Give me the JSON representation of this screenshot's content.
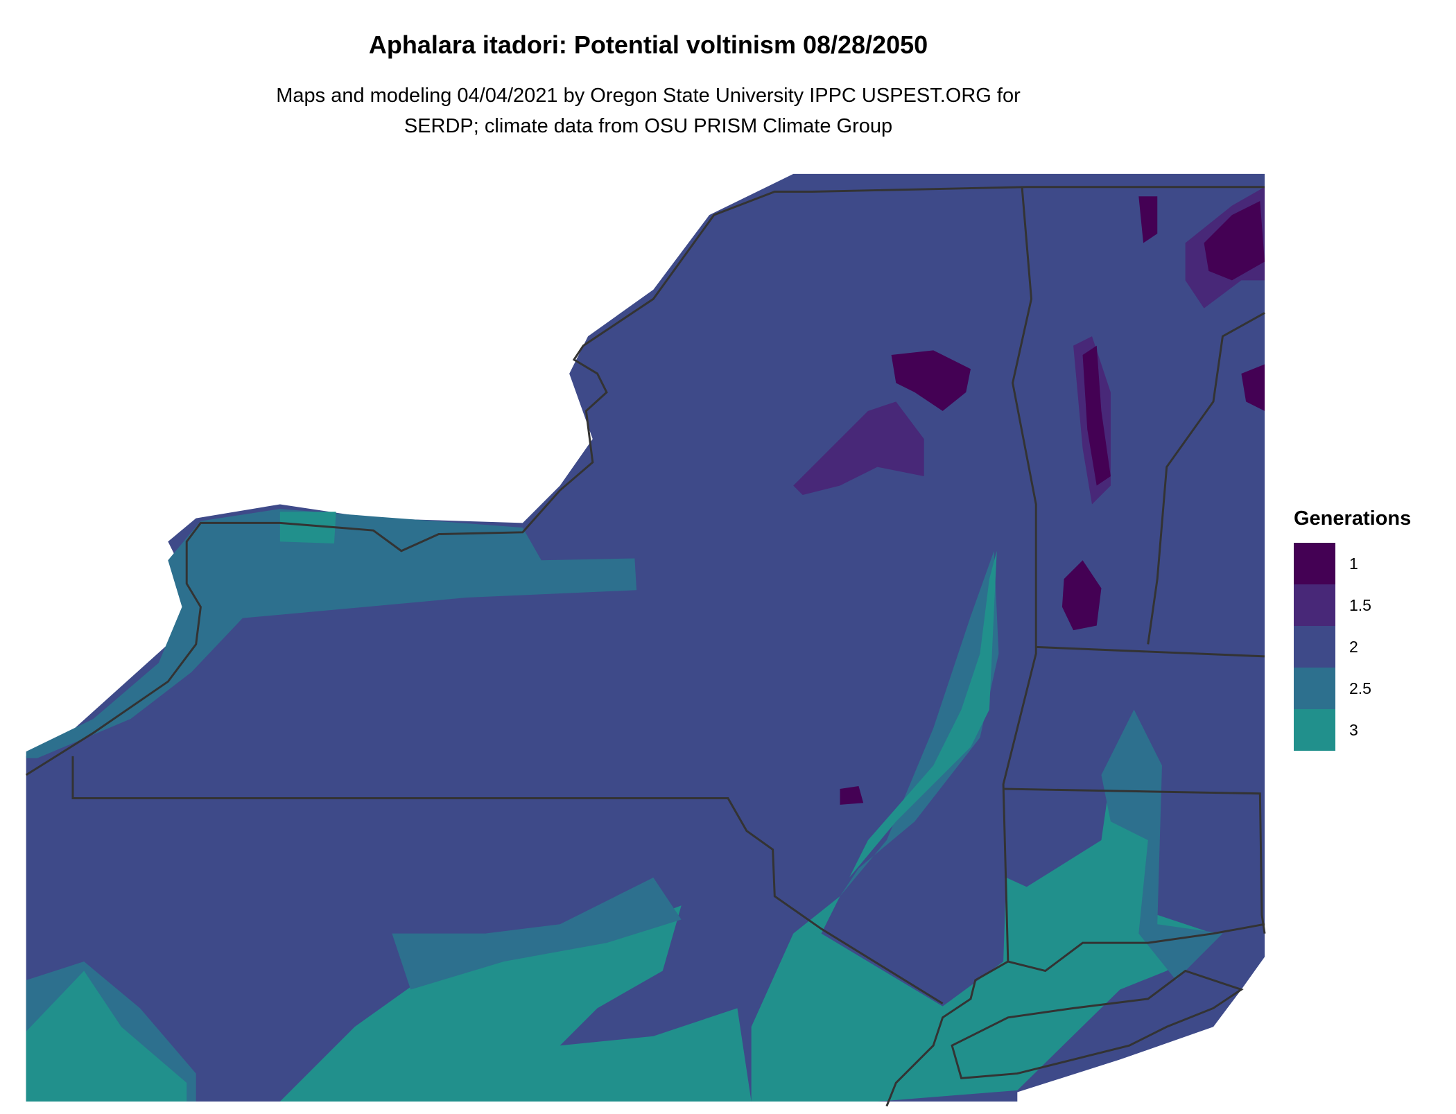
{
  "title": "Aphalara itadori: Potential voltinism 08/28/2050",
  "subtitle_line1": "Maps and modeling 04/04/2021 by Oregon State University IPPC USPEST.ORG for",
  "subtitle_line2": "SERDP; climate data from OSU PRISM Climate Group",
  "legend": {
    "title": "Generations",
    "items": [
      {
        "label": "1",
        "color": "#440154"
      },
      {
        "label": "1.5",
        "color": "#482878"
      },
      {
        "label": "2",
        "color": "#3E4A89"
      },
      {
        "label": "2.5",
        "color": "#2D708E"
      },
      {
        "label": "3",
        "color": "#21908C"
      }
    ]
  },
  "border_color": "#333333"
}
